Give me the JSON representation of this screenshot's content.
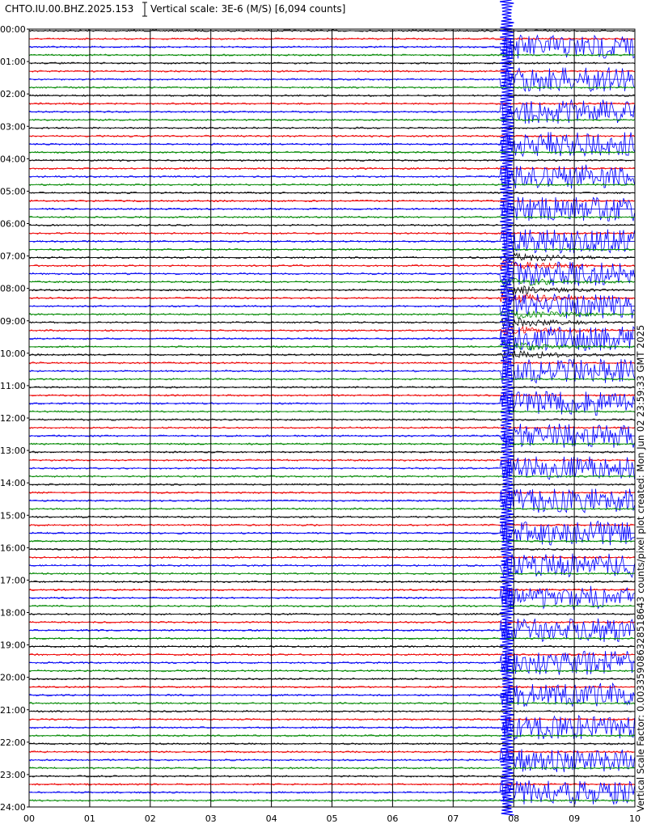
{
  "header": {
    "station": "CHTO.IU.00.BHZ.2025.153",
    "scale": "Vertical scale: 3E-6 (M/S) [6,094 counts]"
  },
  "y_labels": [
    "00:00",
    "01:00",
    "02:00",
    "03:00",
    "04:00",
    "05:00",
    "06:00",
    "07:00",
    "08:00",
    "09:00",
    "10:00",
    "11:00",
    "12:00",
    "13:00",
    "14:00",
    "15:00",
    "16:00",
    "17:00",
    "18:00",
    "19:00",
    "20:00",
    "21:00",
    "22:00",
    "23:00",
    "24:00"
  ],
  "x_labels": [
    "00",
    "01",
    "02",
    "03",
    "04",
    "05",
    "06",
    "07",
    "08",
    "09",
    "10"
  ],
  "side_note": "Vertical Scale Factor: 0.003359086328518643 counts/pixel plot created: Mon Jun 02 23:59:33 GMT 2025"
}
